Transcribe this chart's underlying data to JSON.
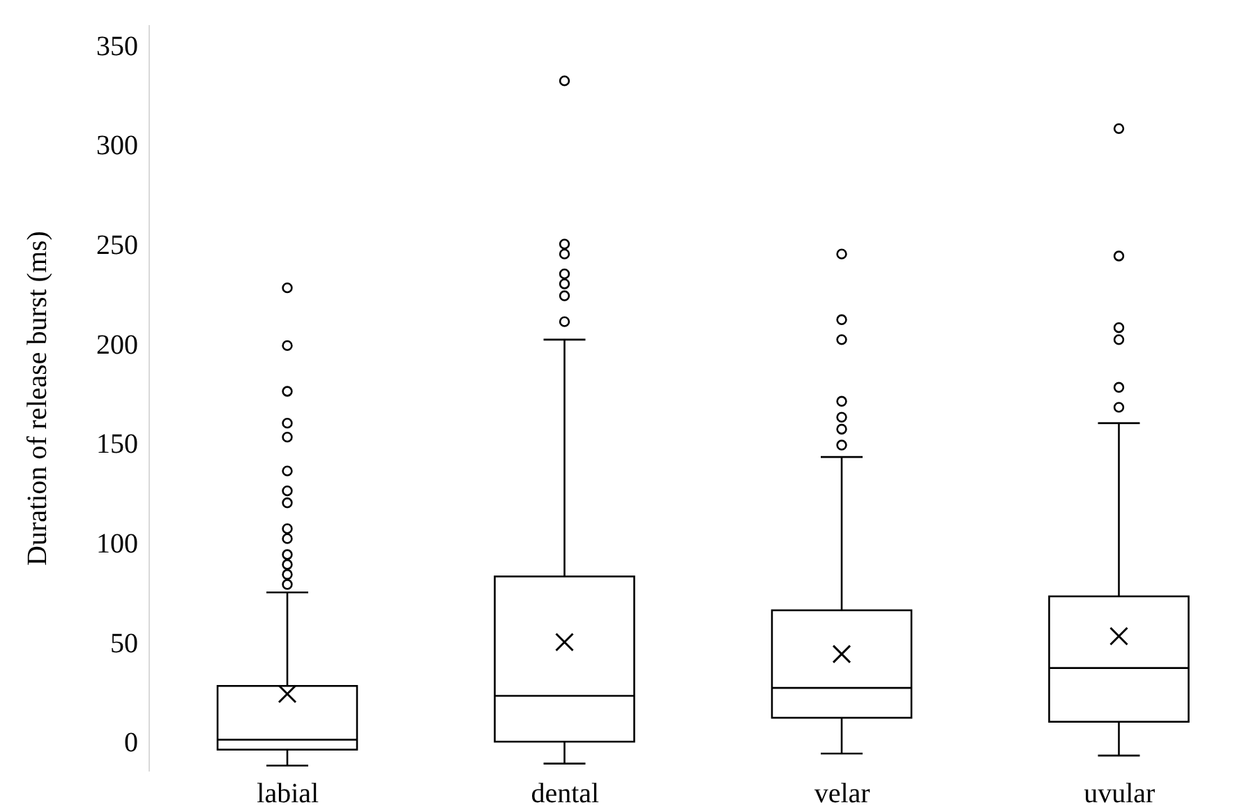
{
  "chart_data": {
    "type": "box",
    "ylabel": "Duration of release burst (ms)",
    "categories": [
      "labial",
      "dental",
      "velar",
      "uvular"
    ],
    "color": "#000000",
    "ylim": [
      -15,
      360
    ],
    "yticks": [
      0,
      50,
      100,
      150,
      200,
      250,
      300,
      350
    ],
    "grid": false,
    "boxes": [
      {
        "low": -12,
        "q1": -4,
        "median": 1,
        "q3": 28,
        "high": 75,
        "mean": 24,
        "outliers": [
          228,
          199,
          176,
          160,
          153,
          136,
          126,
          120,
          107,
          102,
          94,
          89,
          84,
          79
        ]
      },
      {
        "low": -11,
        "q1": 0,
        "median": 23,
        "q3": 83,
        "high": 202,
        "mean": 50,
        "outliers": [
          332,
          250,
          245,
          235,
          230,
          224,
          211
        ]
      },
      {
        "low": -6,
        "q1": 12,
        "median": 27,
        "q3": 66,
        "high": 143,
        "mean": 44,
        "outliers": [
          245,
          212,
          202,
          171,
          163,
          157,
          149
        ]
      },
      {
        "low": -7,
        "q1": 10,
        "median": 37,
        "q3": 73,
        "high": 160,
        "mean": 53,
        "outliers": [
          308,
          244,
          208,
          202,
          178,
          168
        ]
      }
    ]
  }
}
